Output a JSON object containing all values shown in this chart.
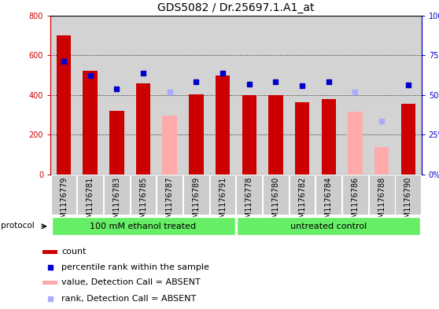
{
  "title": "GDS5082 / Dr.25697.1.A1_at",
  "samples": [
    "GSM1176779",
    "GSM1176781",
    "GSM1176783",
    "GSM1176785",
    "GSM1176787",
    "GSM1176789",
    "GSM1176791",
    "GSM1176778",
    "GSM1176780",
    "GSM1176782",
    "GSM1176784",
    "GSM1176786",
    "GSM1176788",
    "GSM1176790"
  ],
  "count_red": [
    700,
    520,
    320,
    460,
    null,
    405,
    500,
    400,
    400,
    365,
    380,
    null,
    null,
    355
  ],
  "count_pink": [
    null,
    null,
    null,
    null,
    295,
    null,
    null,
    null,
    null,
    null,
    null,
    315,
    140,
    null
  ],
  "rank_blue_pct": [
    71.25,
    62.5,
    53.75,
    63.75,
    null,
    58.125,
    63.75,
    56.875,
    58.125,
    55.625,
    58.125,
    null,
    null,
    56.25
  ],
  "rank_lightblue_pct": [
    null,
    null,
    null,
    null,
    51.875,
    null,
    null,
    null,
    null,
    null,
    null,
    51.875,
    33.75,
    null
  ],
  "group1_label": "100 mM ethanol treated",
  "group2_label": "untreated control",
  "group1_count": 7,
  "group2_count": 7,
  "ylim_left": [
    0,
    800
  ],
  "ylim_right": [
    0,
    100
  ],
  "yticks_left": [
    0,
    200,
    400,
    600,
    800
  ],
  "yticks_right": [
    0,
    25,
    50,
    75,
    100
  ],
  "ytick_labels_left": [
    "0",
    "200",
    "400",
    "600",
    "800"
  ],
  "ytick_labels_right": [
    "0%",
    "25%",
    "50%",
    "75%",
    "100%"
  ],
  "hgrid_at": [
    200,
    400,
    600
  ],
  "dark_red": "#cc0000",
  "pink": "#ffaaaa",
  "dark_blue": "#0000cc",
  "light_blue": "#aaaaff",
  "group_bg": "#66ee66",
  "axis_bg": "#d3d3d3",
  "xtick_bg": "#cccccc",
  "title_fontsize": 10,
  "tick_fontsize": 7,
  "label_fontsize": 8,
  "legend_fontsize": 8
}
